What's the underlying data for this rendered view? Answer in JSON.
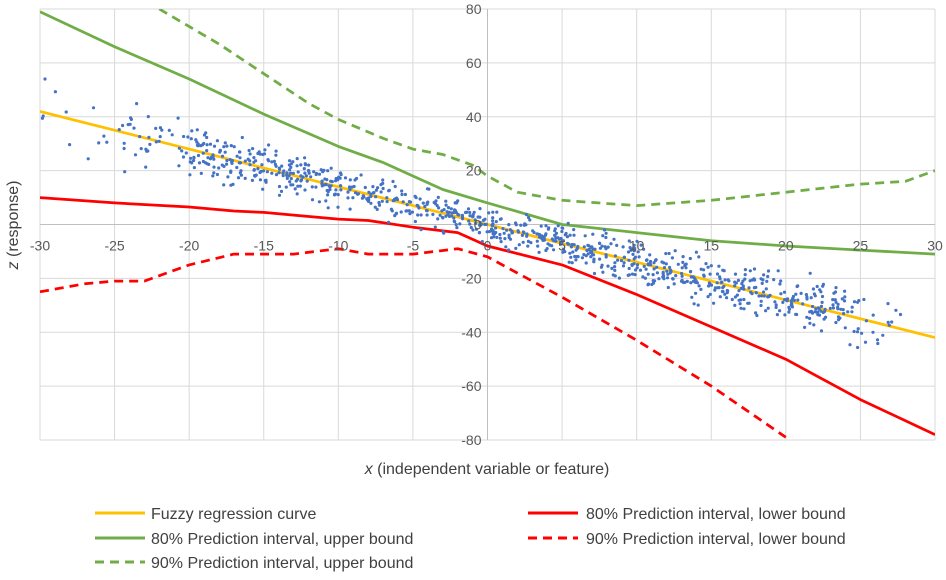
{
  "chart_data": {
    "type": "scatter",
    "xlabel_var": "x",
    "xlabel_rest": " (independent variable or feature)",
    "ylabel_var": "z",
    "ylabel_rest": " (response)",
    "xlim": [
      -30,
      30
    ],
    "ylim": [
      -80,
      80
    ],
    "x_ticks": [
      -30,
      -25,
      -20,
      -15,
      -10,
      -5,
      0,
      5,
      10,
      15,
      20,
      25,
      30
    ],
    "y_ticks": [
      -80,
      -60,
      -40,
      -20,
      0,
      20,
      40,
      60,
      80
    ],
    "grid": "vertical and horizontal",
    "legend_position": "bottom",
    "colors": {
      "fuzzy": "#FFC000",
      "upper80": "#70AD47",
      "upper90": "#70AD47",
      "lower80": "#FF0000",
      "lower90": "#FF0000",
      "points": "#4472C4",
      "grid": "#D9D9D9"
    },
    "series": [
      {
        "name": "Fuzzy regression curve",
        "style": "solid",
        "color": "#FFC000",
        "x": [
          -30,
          -20,
          -10,
          -5,
          0,
          5,
          10,
          20,
          30
        ],
        "y": [
          42,
          28,
          14,
          7,
          0,
          -7,
          -14,
          -28,
          -42
        ]
      },
      {
        "name": "80% Prediction interval, upper bound",
        "style": "solid",
        "color": "#70AD47",
        "x": [
          -30,
          -25,
          -20,
          -15,
          -10,
          -7,
          -5,
          -3,
          0,
          5,
          10,
          15,
          20,
          25,
          30
        ],
        "y": [
          79,
          66,
          54,
          41,
          29,
          23,
          18,
          13,
          8,
          0,
          -3,
          -6,
          -8,
          -9.5,
          -11
        ]
      },
      {
        "name": "90% Prediction interval, upper bound",
        "style": "dashed",
        "color": "#70AD47",
        "x": [
          -22,
          -18,
          -15,
          -12,
          -10,
          -7,
          -5,
          -3,
          -1,
          0,
          2,
          5,
          10,
          15,
          20,
          25,
          28,
          30
        ],
        "y": [
          80,
          67,
          56,
          45,
          39,
          32,
          28,
          26,
          22,
          18,
          12,
          9,
          7,
          9,
          12,
          15,
          16,
          20
        ]
      },
      {
        "name": "80% Prediction interval, lower bound",
        "style": "solid",
        "color": "#FF0000",
        "x": [
          -30,
          -25,
          -20,
          -17,
          -15,
          -13,
          -10,
          -8,
          -5,
          -2,
          0,
          5,
          10,
          15,
          20,
          22,
          25,
          30
        ],
        "y": [
          10,
          8,
          6.5,
          5,
          4.5,
          3.5,
          2,
          1.5,
          -1,
          -3,
          -8,
          -15,
          -26,
          -38,
          -50,
          -56,
          -65,
          -78
        ]
      },
      {
        "name": "90% Prediction interval, lower bound",
        "style": "dashed",
        "color": "#FF0000",
        "x": [
          -30,
          -27,
          -25,
          -23,
          -20,
          -17,
          -15,
          -13,
          -10,
          -8,
          -5,
          -2,
          0,
          2,
          5,
          10,
          15,
          20
        ],
        "y": [
          -25,
          -22,
          -21,
          -21,
          -15,
          -11,
          -11,
          -11,
          -9,
          -11,
          -11,
          -9,
          -12,
          -18,
          -27,
          -43,
          -60,
          -79
        ]
      }
    ],
    "scatter_relation": "approx. z = -1.4 x with noise; about 1000 observations concentrated near x = -20..27",
    "scatter_x_range": [
      -30,
      28
    ]
  }
}
